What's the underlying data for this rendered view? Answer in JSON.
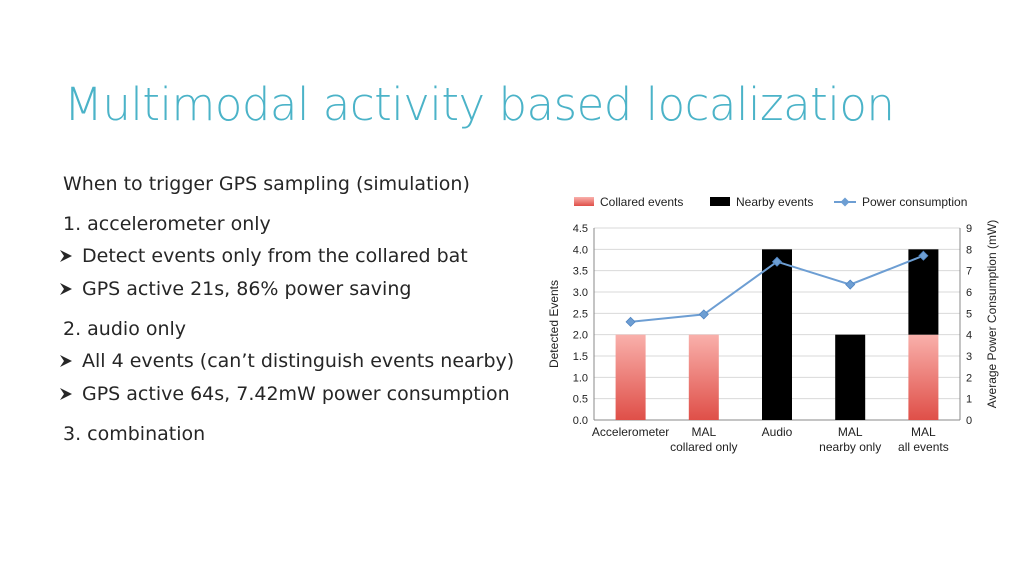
{
  "slide": {
    "title": "Multimodal activity based localization",
    "title_color": "#4bb3c8",
    "intro": "When to trigger GPS sampling (simulation)",
    "sections": [
      {
        "heading": "1. accelerometer only",
        "bullets": [
          "Detect events only from the collared bat",
          "GPS active 21s, 86% power saving"
        ]
      },
      {
        "heading": "2. audio only",
        "bullets": [
          "All 4 events (can’t distinguish events nearby)",
          "GPS active 64s, 7.42mW power consumption"
        ]
      },
      {
        "heading": "3. combination",
        "bullets": []
      }
    ],
    "bullet_icon": "arrow-bullet-icon"
  },
  "chart_data": {
    "type": "bar",
    "categories": [
      [
        "Accelerometer"
      ],
      [
        "MAL",
        "collared only"
      ],
      [
        "Audio"
      ],
      [
        "MAL",
        "nearby only"
      ],
      [
        "MAL",
        "all events"
      ]
    ],
    "series": [
      {
        "name": "Collared events",
        "kind": "bar",
        "values": [
          2,
          2,
          0,
          0,
          2
        ],
        "color": "#e8605a"
      },
      {
        "name": "Nearby events",
        "kind": "bar",
        "values": [
          0,
          0,
          4,
          2,
          2
        ],
        "color": "#000000"
      },
      {
        "name": "Power consumption",
        "kind": "line",
        "axis": "right",
        "values": [
          4.6,
          4.95,
          7.42,
          6.35,
          7.7
        ],
        "color": "#6d9ed3"
      }
    ],
    "stacked": true,
    "ylabel": "Detected Events",
    "y2label": "Average Power Consumption (mW)",
    "ylim": [
      0,
      4.5
    ],
    "y2lim": [
      0,
      9
    ],
    "yticks": [
      "0.0",
      "0.5",
      "1.0",
      "1.5",
      "2.0",
      "2.5",
      "3.0",
      "3.5",
      "4.0",
      "4.5"
    ],
    "y2ticks": [
      "0",
      "1",
      "2",
      "3",
      "4",
      "5",
      "6",
      "7",
      "8",
      "9"
    ],
    "grid": true,
    "legend_position": "top"
  }
}
